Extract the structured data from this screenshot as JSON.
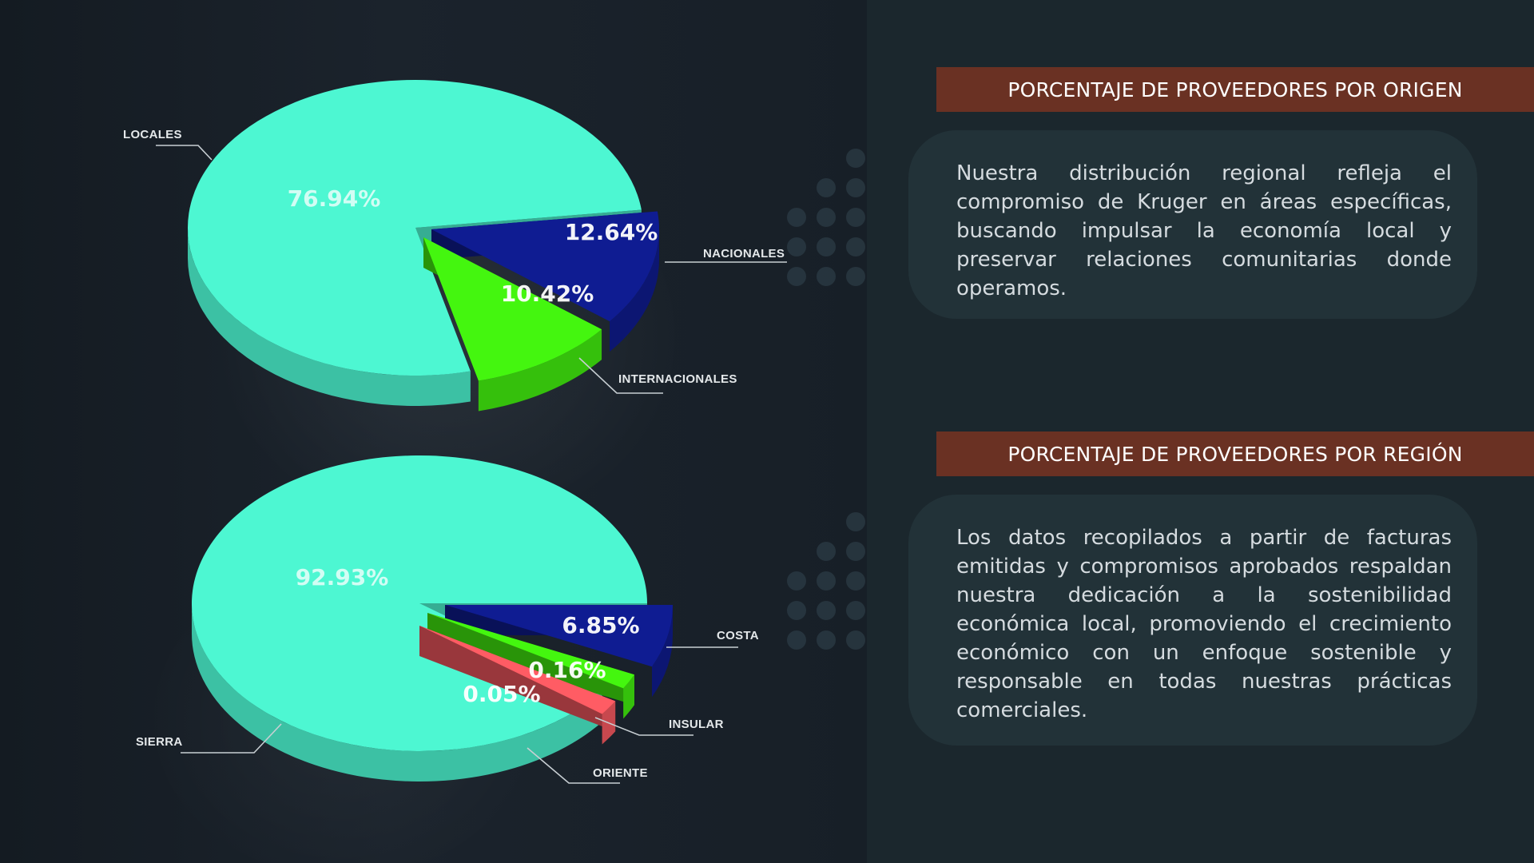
{
  "sections": [
    {
      "header": "PORCENTAJE DE PROVEEDORES POR ORIGEN",
      "body": "Nuestra distribución regional refleja el compromiso de Kruger en áreas específicas, buscando impulsar la economía local y preservar relaciones comunitarias donde operamos."
    },
    {
      "header": "PORCENTAJE DE PROVEEDORES POR REGIÓN",
      "body": "Los datos recopilados a partir de facturas emitidas y compromisos aprobados respaldan nuestra dedicación a la sostenibilidad económica local, promoviendo el crecimiento económico con un enfoque sostenible y responsable en todas nuestras prácticas comerciales."
    }
  ],
  "colors": {
    "teal": "#4df7d2",
    "navy": "#0f1c92",
    "green": "#44f60f",
    "coral": "#ff5c64",
    "header_bg": "#6a3123"
  },
  "chart_data": [
    {
      "type": "pie",
      "title": "",
      "slices": [
        {
          "category": "LOCALES",
          "value": 76.94,
          "label": "76.94%",
          "color": "#4df7d2"
        },
        {
          "category": "NACIONALES",
          "value": 12.64,
          "label": "12.64%",
          "color": "#0f1c92"
        },
        {
          "category": "INTERNACIONALES",
          "value": 10.42,
          "label": "10.42%",
          "color": "#44f60f"
        }
      ]
    },
    {
      "type": "pie",
      "title": "",
      "slices": [
        {
          "category": "SIERRA",
          "value": 92.93,
          "label": "92.93%",
          "color": "#4df7d2"
        },
        {
          "category": "COSTA",
          "value": 6.85,
          "label": "6.85%",
          "color": "#0f1c92"
        },
        {
          "category": "INSULAR",
          "value": 0.16,
          "label": "0.16%",
          "color": "#44f60f"
        },
        {
          "category": "ORIENTE",
          "value": 0.05,
          "label": "0.05%",
          "color": "#ff5c64"
        }
      ]
    }
  ]
}
